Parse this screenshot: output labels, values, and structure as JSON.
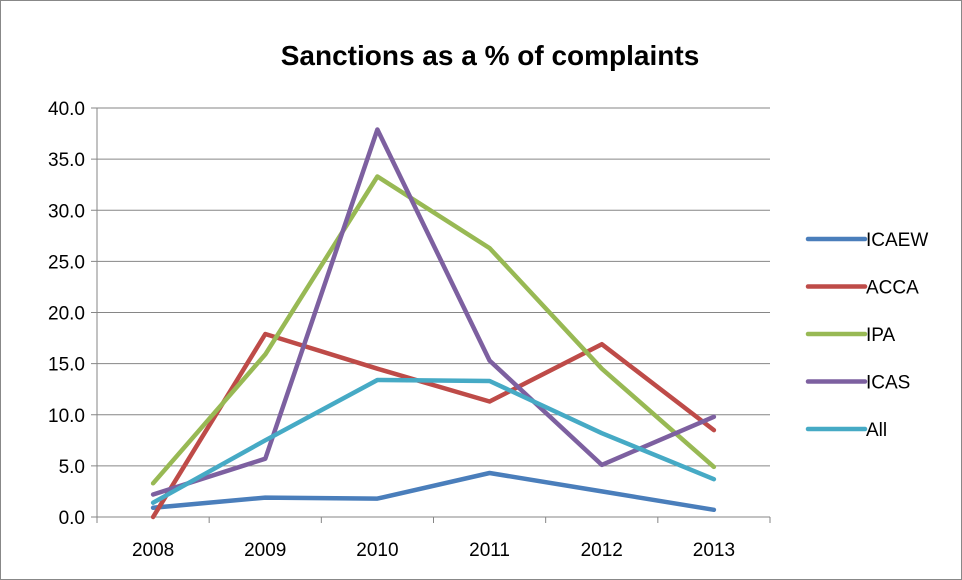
{
  "chart_data": {
    "type": "line",
    "title": "Sanctions as a % of complaints",
    "xlabel": "",
    "ylabel": "",
    "categories": [
      "2008",
      "2009",
      "2010",
      "2011",
      "2012",
      "2013"
    ],
    "ylim": [
      0,
      40
    ],
    "yticks": [
      "0.0",
      "5.0",
      "10.0",
      "15.0",
      "20.0",
      "25.0",
      "30.0",
      "35.0",
      "40.0"
    ],
    "grid": true,
    "legend_position": "right",
    "series": [
      {
        "name": "ICAEW",
        "color": "#4a7ebb",
        "values": [
          0.9,
          1.9,
          1.8,
          4.3,
          2.5,
          0.7
        ]
      },
      {
        "name": "ACCA",
        "color": "#be4b48",
        "values": [
          0.0,
          17.9,
          14.5,
          11.3,
          16.9,
          8.5
        ]
      },
      {
        "name": "IPA",
        "color": "#98b954",
        "values": [
          3.3,
          15.9,
          33.3,
          26.3,
          14.5,
          4.9
        ]
      },
      {
        "name": "ICAS",
        "color": "#7d60a0",
        "values": [
          2.2,
          5.7,
          37.9,
          15.3,
          5.1,
          9.8
        ]
      },
      {
        "name": "All",
        "color": "#46aac5",
        "values": [
          1.4,
          7.5,
          13.4,
          13.3,
          8.2,
          3.7
        ]
      }
    ]
  }
}
